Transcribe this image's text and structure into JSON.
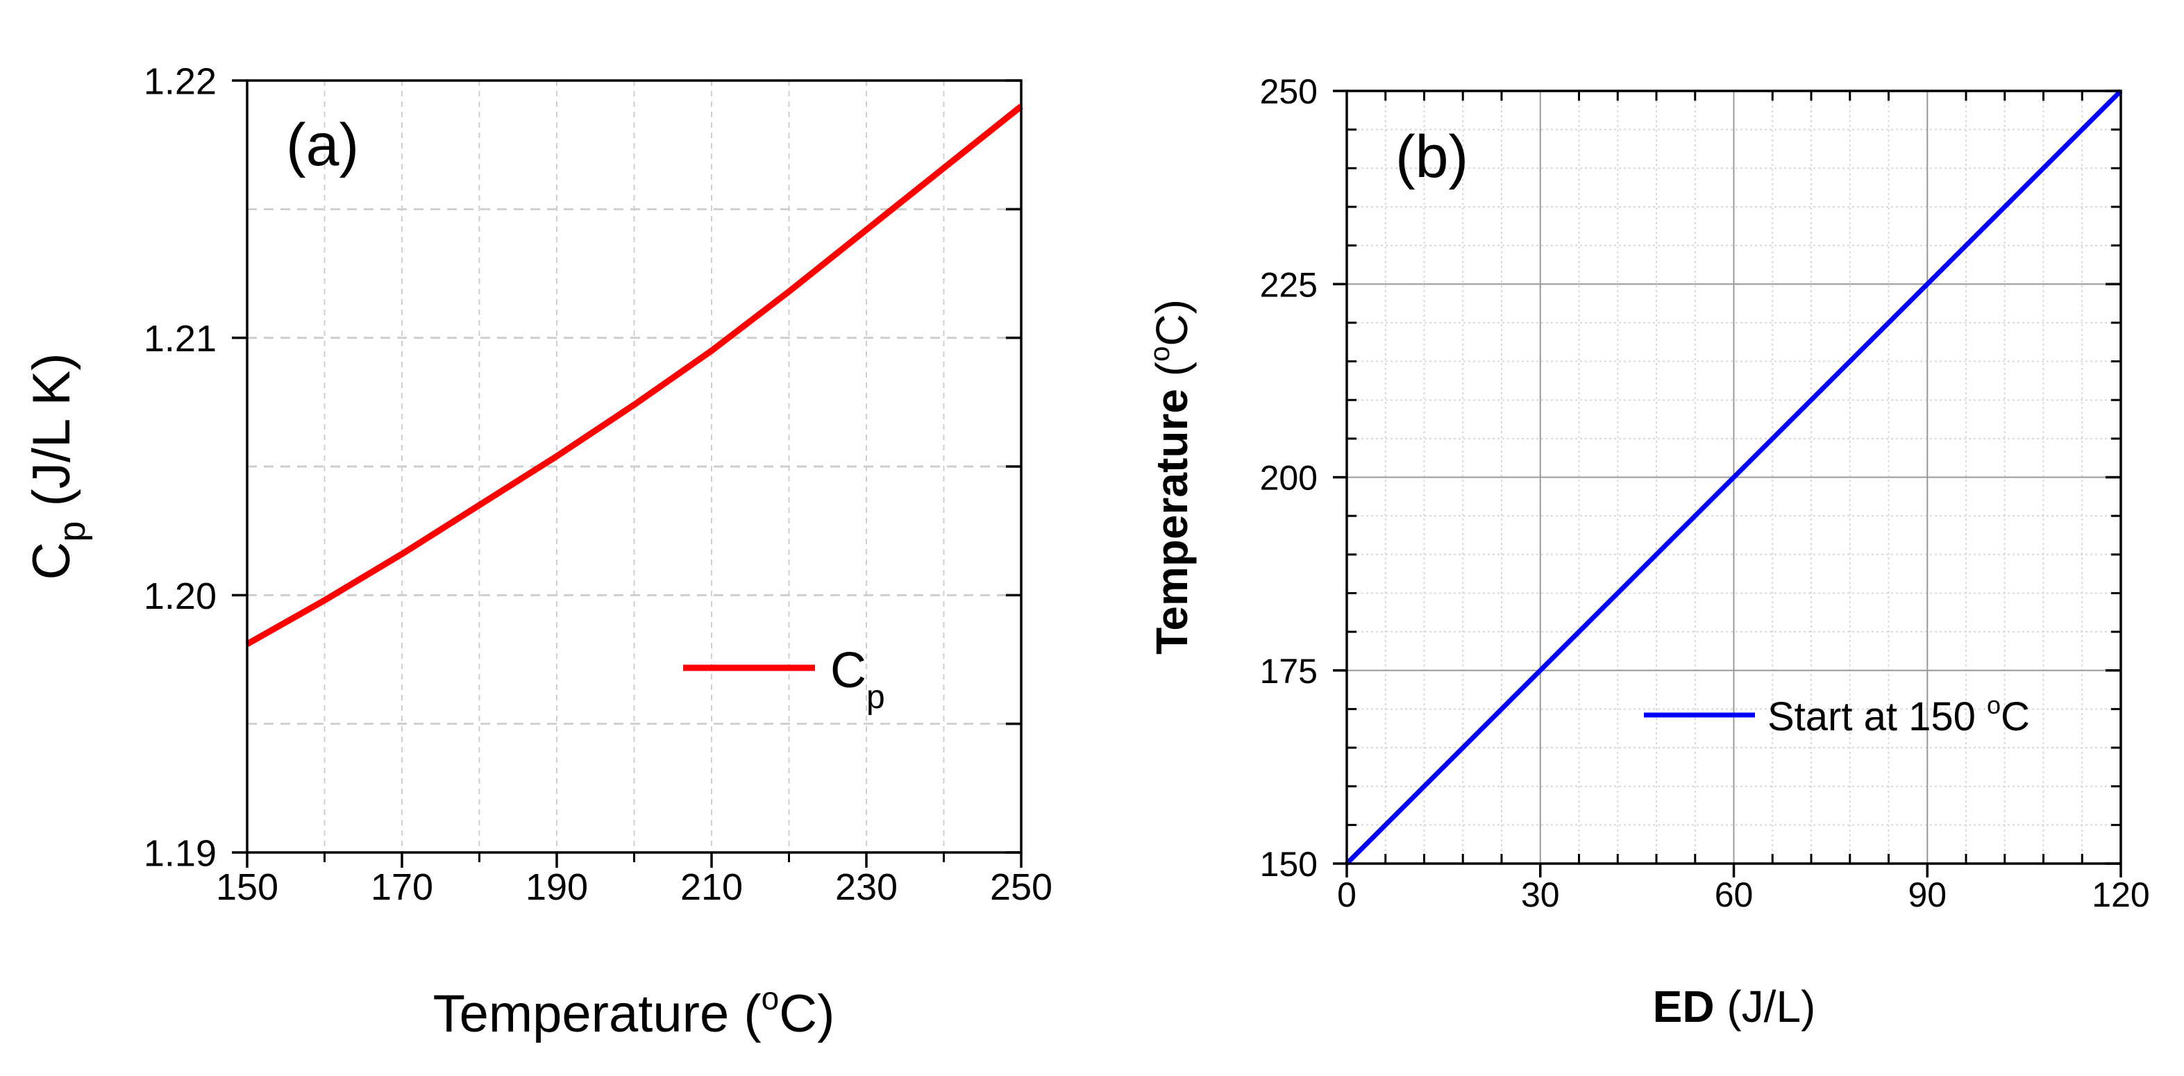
{
  "chart_data": [
    {
      "type": "line",
      "panel_label": "(a)",
      "xlabel": {
        "main": "Temperature (",
        "sup": "o",
        "tail": "C)"
      },
      "ylabel": {
        "main": "C",
        "sub": "p",
        "tail": " (J/L K)"
      },
      "xlim": [
        150,
        250
      ],
      "ylim": [
        1.19,
        1.22
      ],
      "xticks": [
        150,
        170,
        190,
        210,
        230,
        250
      ],
      "xtick_labels": [
        "150",
        "170",
        "190",
        "210",
        "230",
        "250"
      ],
      "yticks": [
        1.19,
        1.2,
        1.21,
        1.22
      ],
      "ytick_labels": [
        "1.19",
        "1.20",
        "1.21",
        "1.22"
      ],
      "grid": true,
      "legend": {
        "main": "C",
        "sub": "p",
        "position": "center-right"
      },
      "series": [
        {
          "name": "Cp",
          "color": "#ff0000",
          "x": [
            150,
            160,
            170,
            180,
            190,
            200,
            210,
            220,
            230,
            240,
            250
          ],
          "y": [
            1.1981,
            1.1998,
            1.2016,
            1.2035,
            1.2054,
            1.2074,
            1.2095,
            1.2118,
            1.2142,
            1.2166,
            1.219
          ]
        }
      ]
    },
    {
      "type": "line",
      "panel_label": "(b)",
      "xlabel": {
        "bold": "ED",
        "tail": " (J/L)"
      },
      "ylabel": {
        "bold": "Temperature",
        "open": " (",
        "sup": "o",
        "tail": "C)"
      },
      "xlim": [
        0,
        120
      ],
      "ylim": [
        150,
        250
      ],
      "xticks": [
        0,
        30,
        60,
        90,
        120
      ],
      "xtick_labels": [
        "0",
        "30",
        "60",
        "90",
        "120"
      ],
      "yticks": [
        150,
        175,
        200,
        225,
        250
      ],
      "ytick_labels": [
        "150",
        "175",
        "200",
        "225",
        "250"
      ],
      "grid": true,
      "legend": {
        "main": "Start at 150 ",
        "sup": "o",
        "tail": "C",
        "position": "lower-right"
      },
      "series": [
        {
          "name": "Start at 150 °C",
          "color": "#0000ff",
          "x": [
            0,
            120
          ],
          "y": [
            150,
            250
          ]
        }
      ]
    }
  ]
}
